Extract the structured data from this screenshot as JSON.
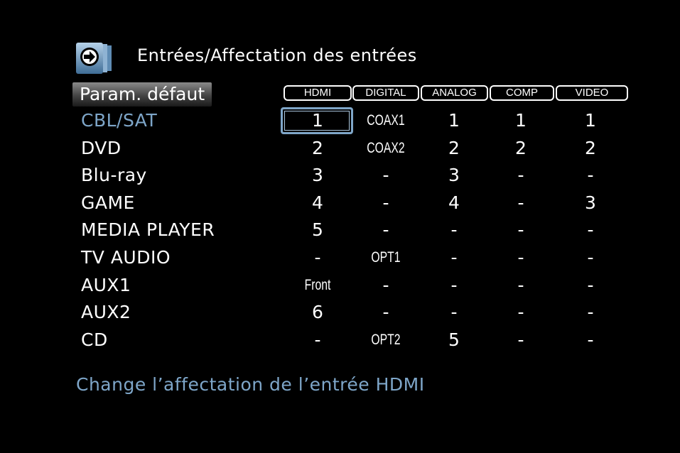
{
  "header": {
    "title": "Entrées/Affectation des entrées",
    "icon": "arrow-right-circle-icon"
  },
  "default_button": "Param. défaut",
  "columns": [
    "HDMI",
    "DIGITAL",
    "ANALOG",
    "COMP",
    "VIDEO"
  ],
  "rows": [
    {
      "label": "CBL/SAT",
      "values": [
        "1",
        "COAX1",
        "1",
        "1",
        "1"
      ],
      "selected": true
    },
    {
      "label": "DVD",
      "values": [
        "2",
        "COAX2",
        "2",
        "2",
        "2"
      ]
    },
    {
      "label": "Blu-ray",
      "values": [
        "3",
        "-",
        "3",
        "-",
        "-"
      ]
    },
    {
      "label": "GAME",
      "values": [
        "4",
        "-",
        "4",
        "-",
        "3"
      ]
    },
    {
      "label": "MEDIA PLAYER",
      "values": [
        "5",
        "-",
        "-",
        "-",
        "-"
      ]
    },
    {
      "label": "TV AUDIO",
      "values": [
        "-",
        "OPT1",
        "-",
        "-",
        "-"
      ]
    },
    {
      "label": "AUX1",
      "values": [
        "Front",
        "-",
        "-",
        "-",
        "-"
      ]
    },
    {
      "label": "AUX2",
      "values": [
        "6",
        "-",
        "-",
        "-",
        "-"
      ]
    },
    {
      "label": "CD",
      "values": [
        "-",
        "OPT2",
        "5",
        "-",
        "-"
      ]
    }
  ],
  "hint": "Change l’affectation de l’entrée HDMI",
  "colors": {
    "accent": "#7ea6c9",
    "background": "#000000"
  }
}
